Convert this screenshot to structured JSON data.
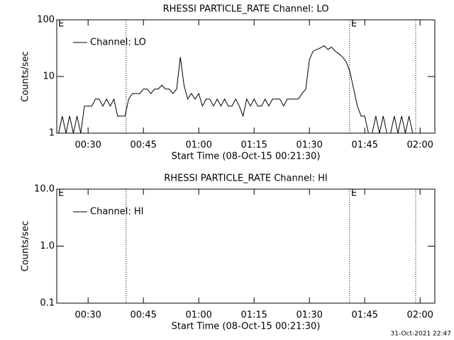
{
  "chart_data": [
    {
      "type": "line",
      "title": "RHESSI PARTICLE_RATE Channel: LO",
      "x_label": "Start Time (08-Oct-15 00:21:30)",
      "y_label": "Counts/sec",
      "log_y": true,
      "legend": "upper left",
      "xlim": [
        21.5,
        124
      ],
      "xticks": [
        {
          "value": 30,
          "label": "00:30"
        },
        {
          "value": 45,
          "label": "00:45"
        },
        {
          "value": 60,
          "label": "01:00"
        },
        {
          "value": 75,
          "label": "01:15"
        },
        {
          "value": 90,
          "label": "01:30"
        },
        {
          "value": 105,
          "label": "01:45"
        },
        {
          "value": 120,
          "label": "02:00"
        }
      ],
      "ylim": [
        1,
        100
      ],
      "yticks": [
        1,
        10,
        100
      ],
      "vlines": [
        40.3,
        100.9,
        118.8
      ],
      "annotations": [
        {
          "x": 21.5,
          "text": "E"
        },
        {
          "x": 100.9,
          "text": "E"
        }
      ],
      "x": [
        22,
        23,
        24,
        25,
        26,
        27,
        28,
        29,
        30,
        31,
        32,
        33,
        34,
        35,
        36,
        37,
        38,
        39,
        40,
        41,
        42,
        43,
        44,
        45,
        46,
        47,
        48,
        49,
        50,
        51,
        52,
        53,
        54,
        55,
        56,
        57,
        58,
        59,
        60,
        61,
        62,
        63,
        64,
        65,
        66,
        67,
        68,
        69,
        70,
        71,
        72,
        73,
        74,
        75,
        76,
        77,
        78,
        79,
        80,
        81,
        82,
        83,
        84,
        85,
        86,
        87,
        88,
        89,
        90,
        91,
        92,
        93,
        94,
        95,
        96,
        97,
        98,
        99,
        100,
        101,
        102,
        103,
        104,
        105,
        106,
        107,
        108,
        109,
        110,
        111,
        112,
        113,
        114,
        115,
        116,
        117,
        118
      ],
      "series": [
        {
          "name": "Channel: LO",
          "color": "#000000",
          "values": [
            1,
            2,
            1,
            2,
            1,
            2,
            1,
            3,
            3,
            3,
            4,
            4,
            3,
            4,
            3,
            4,
            2,
            2,
            2,
            4,
            5,
            5,
            5,
            6,
            6,
            5,
            6,
            6,
            7,
            6,
            6,
            5,
            6,
            22,
            7,
            4,
            5,
            4,
            5,
            3,
            4,
            4,
            3,
            4,
            3,
            4,
            3,
            3,
            4,
            3,
            2,
            4,
            3,
            4,
            3,
            3,
            4,
            3,
            4,
            4,
            4,
            3,
            4,
            4,
            4,
            4,
            5,
            6,
            20,
            28,
            30,
            32,
            35,
            30,
            33,
            28,
            25,
            22,
            18,
            12,
            6,
            3,
            2,
            2,
            1,
            1,
            2,
            1,
            2,
            1,
            1,
            2,
            1,
            2,
            1,
            2,
            1
          ]
        }
      ]
    },
    {
      "type": "line",
      "title": "RHESSI PARTICLE_RATE Channel: HI",
      "x_label": "Start Time (08-Oct-15 00:21:30)",
      "y_label": "Counts/sec",
      "log_y": true,
      "legend": "upper left",
      "xlim": [
        21.5,
        124
      ],
      "xticks": [
        {
          "value": 30,
          "label": "00:30"
        },
        {
          "value": 45,
          "label": "00:45"
        },
        {
          "value": 60,
          "label": "01:00"
        },
        {
          "value": 75,
          "label": "01:15"
        },
        {
          "value": 90,
          "label": "01:30"
        },
        {
          "value": 105,
          "label": "01:45"
        },
        {
          "value": 120,
          "label": "02:00"
        }
      ],
      "ylim": [
        0.1,
        10
      ],
      "yticks": [
        0.1,
        {
          "value": 1,
          "label": "1.0"
        },
        {
          "value": 10,
          "label": "10.0"
        }
      ],
      "vlines": [
        40.3,
        100.9,
        118.8
      ],
      "annotations": [
        {
          "x": 21.5,
          "text": "E"
        },
        {
          "x": 100.9,
          "text": "E"
        }
      ],
      "x": [],
      "series": [
        {
          "name": "Channel: HI",
          "color": "#000000",
          "values": []
        }
      ]
    }
  ],
  "footer": "31-Oct-2021 22:47"
}
